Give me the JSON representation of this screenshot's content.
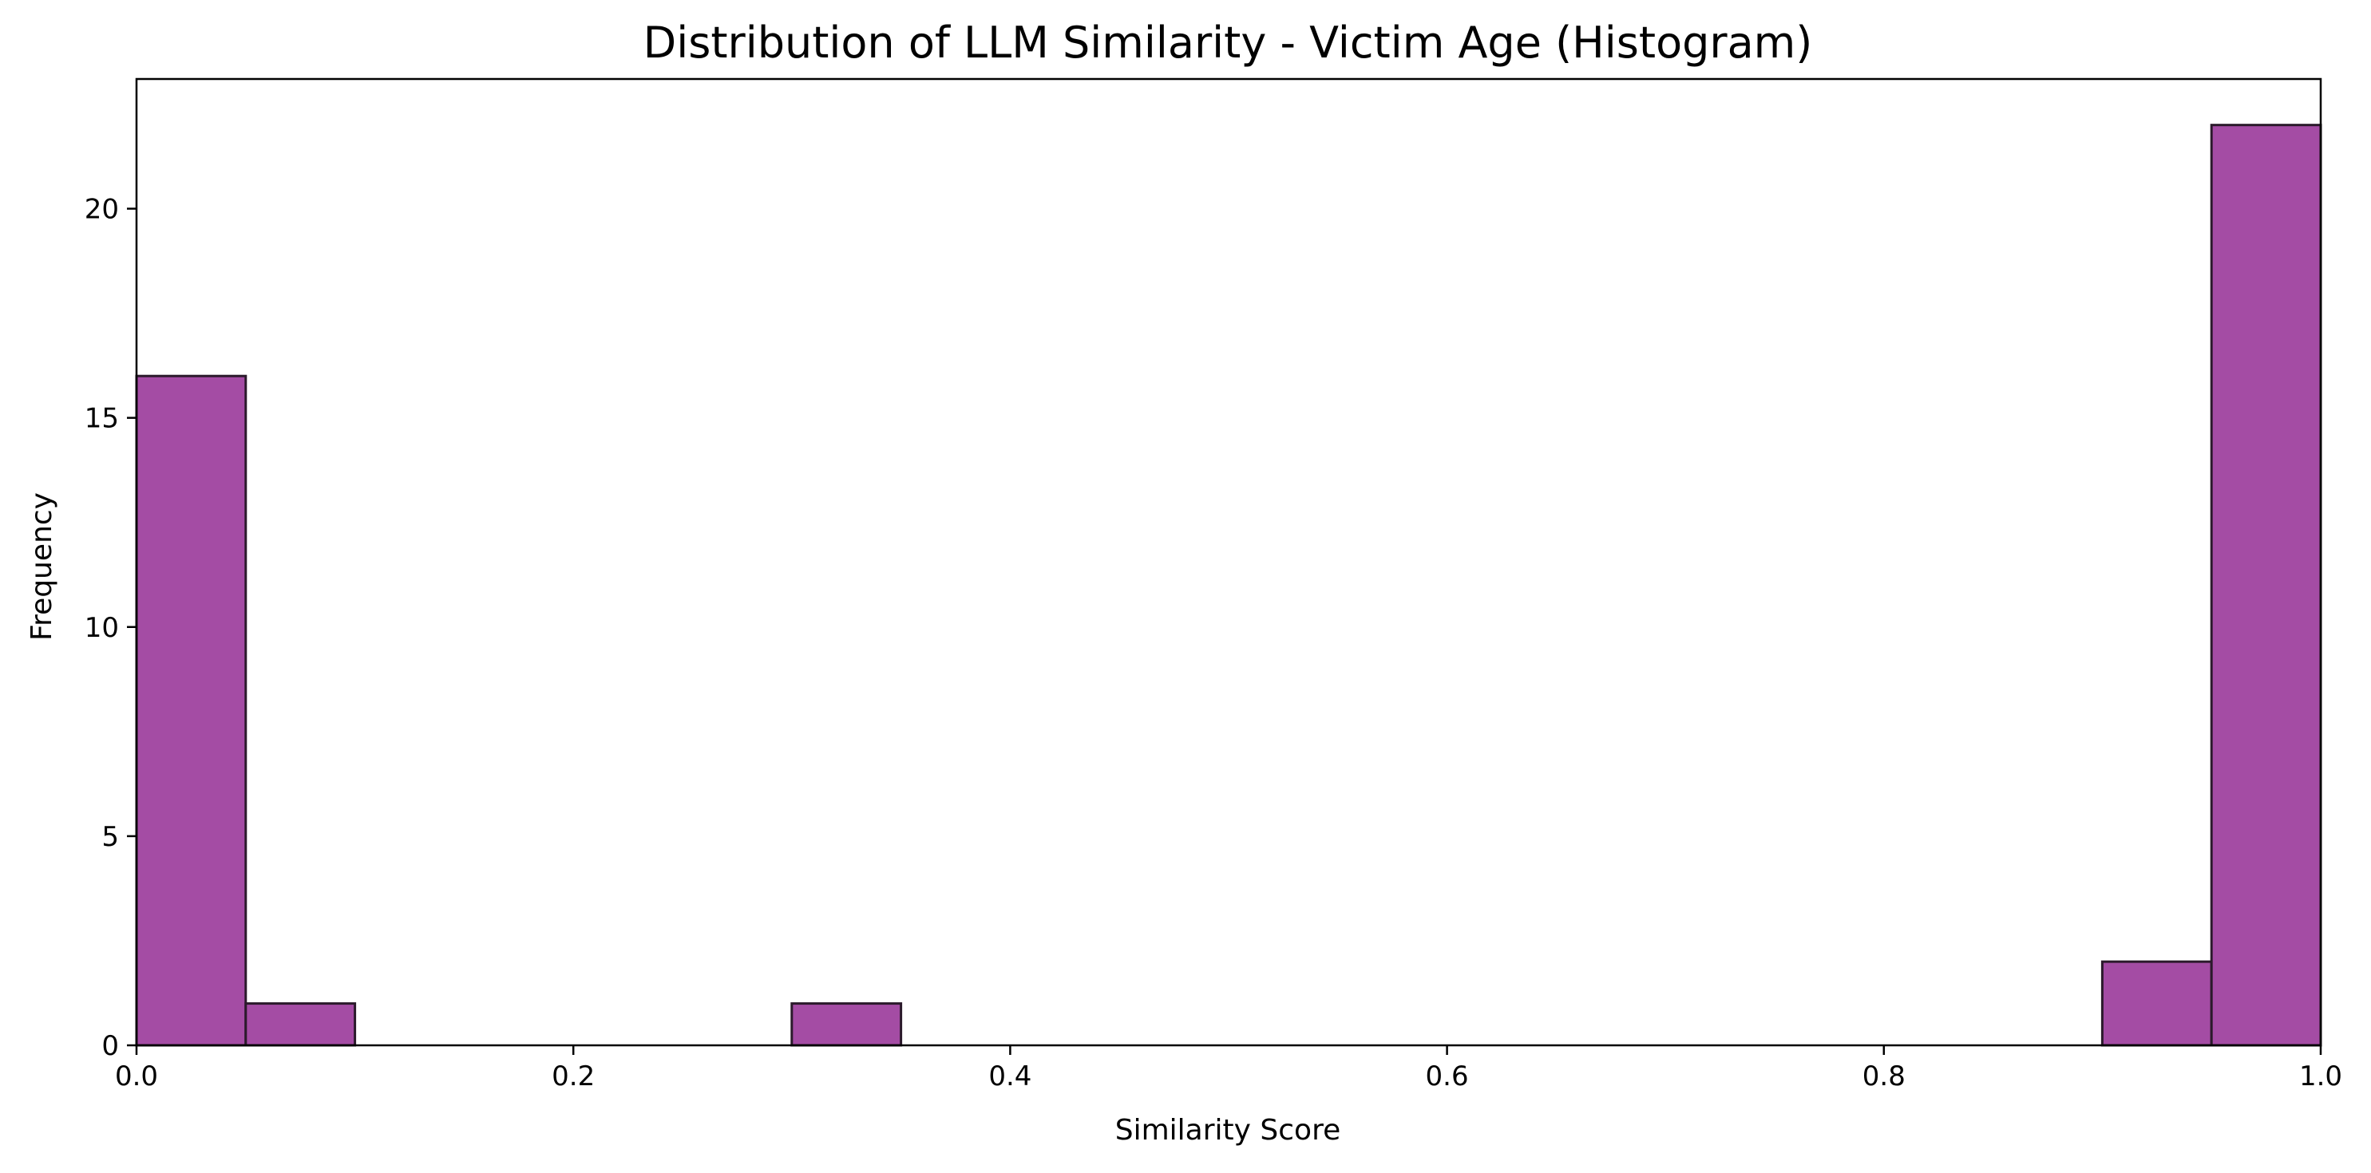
{
  "chart_data": {
    "type": "bar",
    "title": "Distribution of LLM Similarity - Victim Age (Histogram)",
    "xlabel": "Similarity Score",
    "ylabel": "Frequency",
    "xlim": [
      0.0,
      1.0
    ],
    "ylim": [
      0,
      23.1
    ],
    "x_ticks": [
      "0.0",
      "0.2",
      "0.4",
      "0.6",
      "0.8",
      "1.0"
    ],
    "y_ticks": [
      "0",
      "5",
      "10",
      "15",
      "20"
    ],
    "bin_width": 0.05,
    "bins": [
      {
        "start": 0.0,
        "end": 0.05,
        "count": 16
      },
      {
        "start": 0.05,
        "end": 0.1,
        "count": 1
      },
      {
        "start": 0.3,
        "end": 0.35,
        "count": 1
      },
      {
        "start": 0.9,
        "end": 0.95,
        "count": 2
      },
      {
        "start": 0.95,
        "end": 1.0,
        "count": 22
      }
    ],
    "bar_color": "#a44ca4",
    "edge_color": "#2b1a2b",
    "grid": false,
    "legend": "none"
  }
}
